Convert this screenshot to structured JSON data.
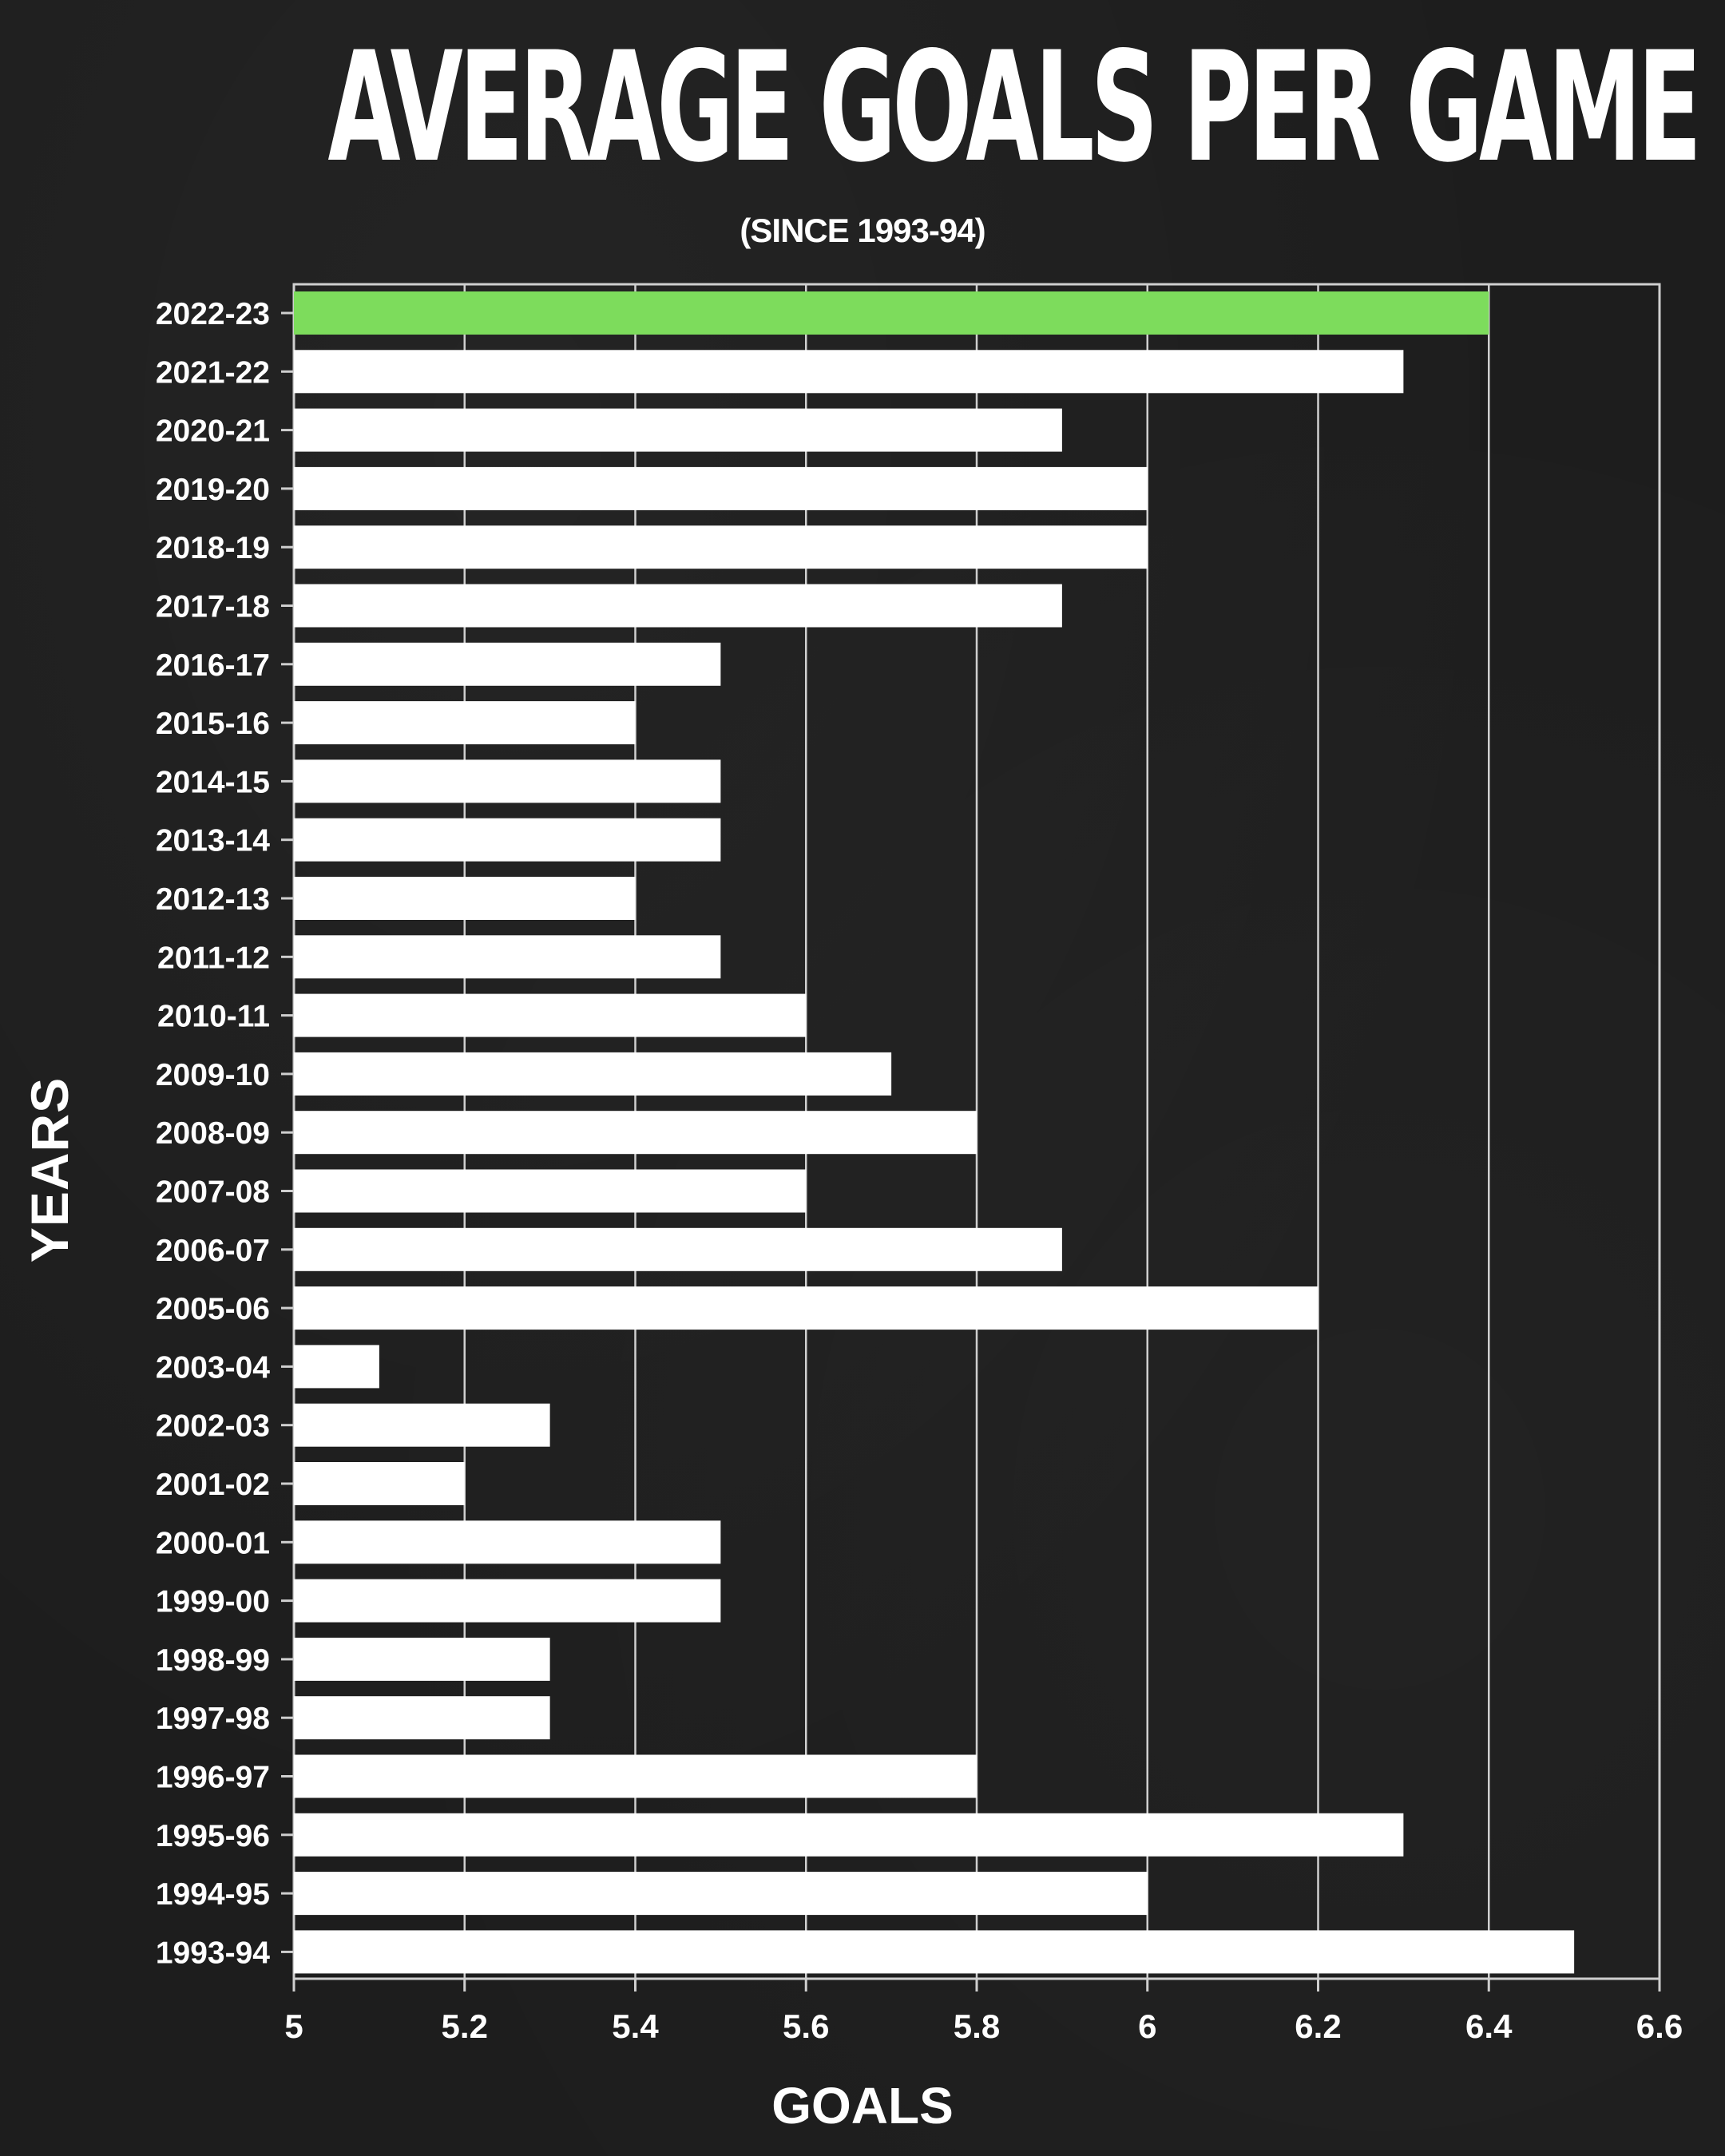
{
  "title": "AVERAGE GOALS PER GAME",
  "subtitle": "(SINCE 1993-94)",
  "colors": {
    "background": "#1d1d1d",
    "bar": "#ffffff",
    "highlight": "#7ddc5c",
    "grid": "#cfcfcf"
  },
  "chart_data": {
    "type": "bar",
    "orientation": "horizontal",
    "title": "AVERAGE GOALS PER GAME",
    "subtitle": "(SINCE 1993-94)",
    "xlabel": "GOALS",
    "ylabel": "YEARS",
    "xlim": [
      5,
      6.6
    ],
    "xticks": [
      "5",
      "5.2",
      "5.4",
      "5.6",
      "5.8",
      "6",
      "6.2",
      "6.4",
      "6.6"
    ],
    "grid": true,
    "highlight_category": "2022-23",
    "categories": [
      "2022-23",
      "2021-22",
      "2020-21",
      "2019-20",
      "2018-19",
      "2017-18",
      "2016-17",
      "2015-16",
      "2014-15",
      "2013-14",
      "2012-13",
      "2011-12",
      "2010-11",
      "2009-10",
      "2008-09",
      "2007-08",
      "2006-07",
      "2005-06",
      "2003-04",
      "2002-03",
      "2001-02",
      "2000-01",
      "1999-00",
      "1998-99",
      "1997-98",
      "1996-97",
      "1995-96",
      "1994-95",
      "1993-94"
    ],
    "values": [
      6.4,
      6.3,
      5.9,
      6.0,
      6.0,
      5.9,
      5.5,
      5.4,
      5.5,
      5.5,
      5.4,
      5.5,
      5.6,
      5.7,
      5.8,
      5.6,
      5.9,
      6.2,
      5.1,
      5.3,
      5.2,
      5.5,
      5.5,
      5.3,
      5.3,
      5.8,
      6.3,
      6.0,
      6.5
    ]
  }
}
